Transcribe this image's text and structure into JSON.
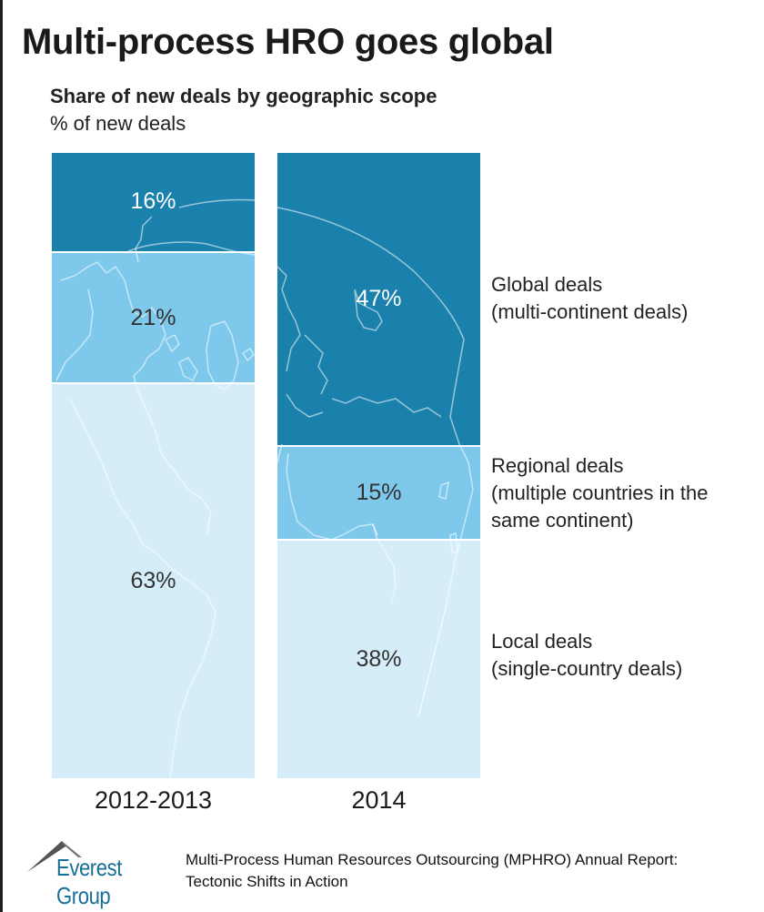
{
  "title": "Multi-process HRO goes global",
  "subtitle": "Share of new deals by geographic scope",
  "unit_label": "% of new deals",
  "colors": {
    "global": "#1a80ac",
    "regional": "#7ec9eb",
    "local": "#d5ecf9",
    "divider": "#ffffff"
  },
  "bars": [
    {
      "label": "2012-2013",
      "segments": [
        {
          "name": "Global deals",
          "value": 16,
          "text": "16%"
        },
        {
          "name": "Regional deals",
          "value": 21,
          "text": "21%"
        },
        {
          "name": "Local deals",
          "value": 63,
          "text": "63%"
        }
      ]
    },
    {
      "label": "2014",
      "segments": [
        {
          "name": "Global deals",
          "value": 47,
          "text": "47%"
        },
        {
          "name": "Regional deals",
          "value": 15,
          "text": "15%"
        },
        {
          "name": "Local deals",
          "value": 38,
          "text": "38%"
        }
      ]
    }
  ],
  "legend": {
    "global": {
      "line1": "Global deals",
      "line2": "(multi-continent deals)"
    },
    "regional": {
      "line1": "Regional deals",
      "line2": "(multiple countries in the",
      "line3": "same continent)"
    },
    "local": {
      "line1": "Local deals",
      "line2": "(single-country deals)"
    }
  },
  "footer": {
    "logo_text": "Everest Group",
    "logo_icon": "mountain-peak-icon",
    "source_line1": "Multi-Process Human Resources Outsourcing (MPHRO) Annual Report:",
    "source_line2": "Tectonic Shifts in Action"
  },
  "chart_data": {
    "type": "bar",
    "stacked": true,
    "normalized_100": true,
    "title": "Multi-process HRO goes global",
    "subtitle": "Share of new deals by geographic scope",
    "ylabel": "% of new deals",
    "xlabel": "",
    "categories": [
      "2012-2013",
      "2014"
    ],
    "series": [
      {
        "name": "Global deals (multi-continent deals)",
        "values": [
          16,
          47
        ],
        "color": "#1a80ac"
      },
      {
        "name": "Regional deals (multiple countries in the same continent)",
        "values": [
          21,
          15
        ],
        "color": "#7ec9eb"
      },
      {
        "name": "Local deals (single-country deals)",
        "values": [
          63,
          38
        ],
        "color": "#d5ecf9"
      }
    ],
    "ylim": [
      0,
      100
    ],
    "grid": false,
    "legend_position": "right (direct labels)",
    "background_decoration": "world map outline overlay"
  }
}
